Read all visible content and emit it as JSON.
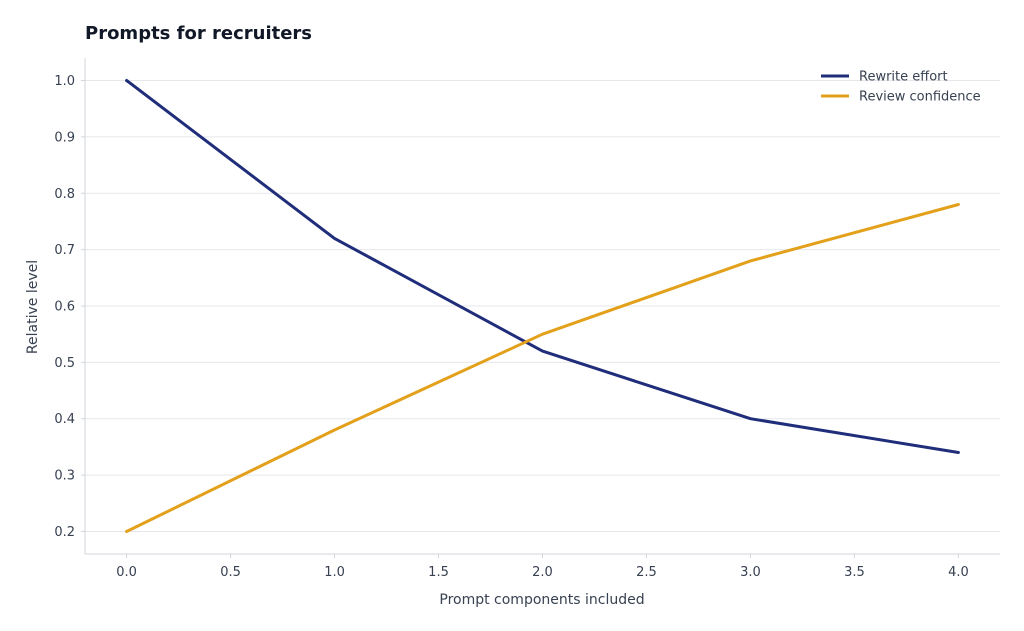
{
  "chart_data": {
    "type": "line",
    "title": "Prompts for recruiters",
    "xlabel": "Prompt components included",
    "ylabel": "Relative level",
    "x": [
      0,
      1,
      2,
      3,
      4
    ],
    "xlim": [
      -0.2,
      4.2
    ],
    "ylim": [
      0.16,
      1.04
    ],
    "xticks": [
      0.0,
      0.5,
      1.0,
      1.5,
      2.0,
      2.5,
      3.0,
      3.5,
      4.0
    ],
    "yticks": [
      0.2,
      0.3,
      0.4,
      0.5,
      0.6,
      0.7,
      0.8,
      0.9,
      1.0
    ],
    "grid": "horizontal",
    "legend_position": "top-right",
    "series": [
      {
        "name": "Rewrite effort",
        "color": "#1f2d7a",
        "values": [
          1.0,
          0.72,
          0.52,
          0.4,
          0.34
        ]
      },
      {
        "name": "Review confidence",
        "color": "#e3a01b",
        "values": [
          0.2,
          0.38,
          0.55,
          0.68,
          0.78
        ]
      }
    ]
  }
}
